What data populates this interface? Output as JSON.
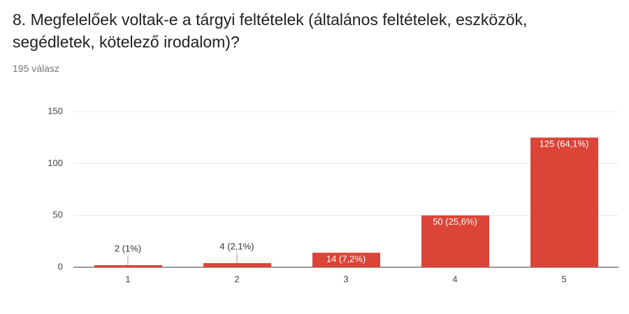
{
  "chart_data": {
    "type": "bar",
    "title": "8. Megfelelőek voltak-e a tárgyi feltételek (általános feltételek, eszközök, segédletek, kötelező irodalom)?",
    "subtitle": "195 válasz",
    "categories": [
      "1",
      "2",
      "3",
      "4",
      "5"
    ],
    "values": [
      2,
      4,
      14,
      50,
      125
    ],
    "value_labels": [
      "2 (1%)",
      "4 (2,1%)",
      "14 (7,2%)",
      "50 (25,6%)",
      "125 (64,1%)"
    ],
    "color": "#db4437",
    "ylim": [
      0,
      150
    ],
    "yticks": [
      0,
      50,
      100,
      150
    ],
    "grid": true
  }
}
